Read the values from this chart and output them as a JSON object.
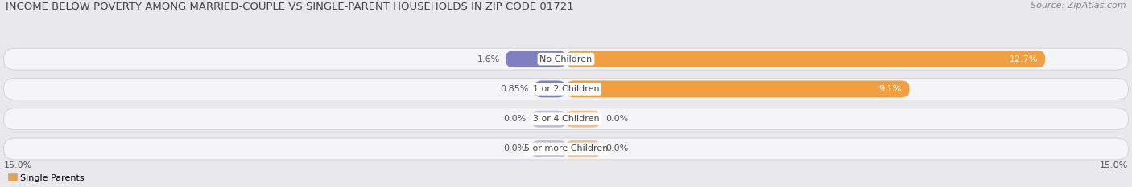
{
  "title": "INCOME BELOW POVERTY AMONG MARRIED-COUPLE VS SINGLE-PARENT HOUSEHOLDS IN ZIP CODE 01721",
  "source": "Source: ZipAtlas.com",
  "categories": [
    "No Children",
    "1 or 2 Children",
    "3 or 4 Children",
    "5 or more Children"
  ],
  "married_values": [
    1.6,
    0.85,
    0.0,
    0.0
  ],
  "single_values": [
    12.7,
    9.1,
    0.0,
    0.0
  ],
  "married_labels": [
    "1.6%",
    "0.85%",
    "0.0%",
    "0.0%"
  ],
  "single_labels": [
    "12.7%",
    "9.1%",
    "0.0%",
    "0.0%"
  ],
  "axis_max": 15.0,
  "axis_label_left": "15.0%",
  "axis_label_right": "15.0%",
  "married_color": "#8080c0",
  "married_color_zero": "#c0c0d8",
  "single_color": "#f0a040",
  "single_color_zero": "#f5c090",
  "bg_color": "#e8e8ed",
  "row_bg_color": "#f5f5f8",
  "title_fontsize": 9.5,
  "source_fontsize": 8,
  "label_fontsize": 8,
  "legend_fontsize": 8,
  "category_fontsize": 8
}
